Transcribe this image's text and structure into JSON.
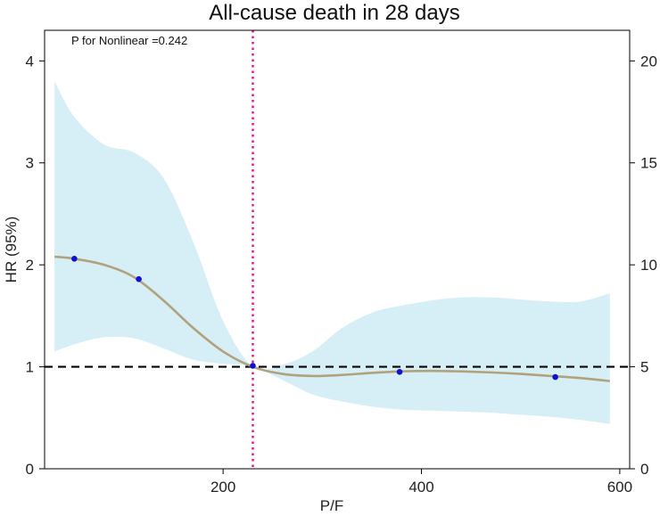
{
  "chart_data": {
    "type": "line",
    "title": "All-cause death in 28 days",
    "xlabel": "P/F",
    "ylabel": "HR (95%)",
    "annotation": "P for Nonlinear =0.242",
    "xlim": [
      20,
      610
    ],
    "ylim": [
      0,
      4.3
    ],
    "xticks": [
      200,
      400,
      600
    ],
    "yticks": [
      0,
      1,
      2,
      3,
      4
    ],
    "y2lim": [
      0,
      21.5
    ],
    "y2ticks": [
      0,
      5,
      10,
      15,
      20
    ],
    "reference_line_y": 1,
    "reference_line_x": 230,
    "colors": {
      "curve": "#b0a27c",
      "band": "#d6eef5",
      "points": "#1010d0",
      "vline": "#e0128c",
      "hline": "#000000"
    },
    "series": [
      {
        "name": "HR",
        "x": [
          30,
          50,
          80,
          110,
          140,
          170,
          200,
          230,
          260,
          290,
          320,
          350,
          380,
          410,
          440,
          470,
          500,
          530,
          560,
          590
        ],
        "values": [
          2.08,
          2.06,
          2.0,
          1.88,
          1.65,
          1.38,
          1.15,
          1.0,
          0.93,
          0.91,
          0.92,
          0.94,
          0.955,
          0.96,
          0.955,
          0.945,
          0.93,
          0.91,
          0.89,
          0.86
        ]
      }
    ],
    "ci_band": {
      "x": [
        30,
        50,
        80,
        110,
        140,
        170,
        200,
        230,
        260,
        290,
        320,
        350,
        380,
        410,
        440,
        470,
        500,
        530,
        560,
        590
      ],
      "upper": [
        3.8,
        3.45,
        3.18,
        3.1,
        2.85,
        2.22,
        1.45,
        1.0,
        1.02,
        1.15,
        1.38,
        1.53,
        1.6,
        1.65,
        1.68,
        1.68,
        1.66,
        1.64,
        1.64,
        1.72
      ],
      "lower": [
        1.15,
        1.22,
        1.29,
        1.28,
        1.18,
        1.07,
        1.03,
        1.0,
        0.87,
        0.73,
        0.66,
        0.61,
        0.58,
        0.57,
        0.56,
        0.55,
        0.53,
        0.51,
        0.48,
        0.44
      ]
    },
    "points": [
      {
        "x": 50,
        "y": 2.06
      },
      {
        "x": 115,
        "y": 1.86
      },
      {
        "x": 230,
        "y": 1.01
      },
      {
        "x": 378,
        "y": 0.95
      },
      {
        "x": 535,
        "y": 0.9
      }
    ]
  }
}
